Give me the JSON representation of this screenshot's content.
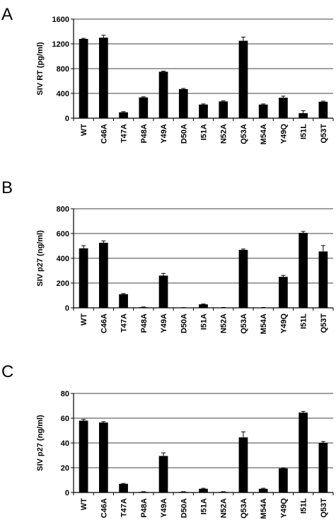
{
  "chart_data": [
    {
      "type": "bar",
      "panel": "A",
      "ylabel": "SIV RT (pg/ml)",
      "ylim": [
        0,
        1600
      ],
      "yticks": [
        0,
        400,
        800,
        1200,
        1600
      ],
      "grid": true,
      "categories": [
        "WT",
        "C46A",
        "T47A",
        "P48A",
        "Y49A",
        "D50A",
        "I51A",
        "N52A",
        "Q53A",
        "M54A",
        "Y49Q",
        "I51L",
        "Q53T"
      ],
      "values": [
        1280,
        1300,
        95,
        335,
        750,
        470,
        220,
        270,
        1250,
        220,
        330,
        80,
        265
      ],
      "errors": [
        10,
        40,
        10,
        10,
        10,
        10,
        10,
        10,
        60,
        10,
        25,
        40,
        10
      ],
      "bar_color": "#000000"
    },
    {
      "type": "bar",
      "panel": "B",
      "ylabel": "SIV p27 (ng/ml)",
      "ylim": [
        0,
        800
      ],
      "yticks": [
        0,
        200,
        400,
        600,
        800
      ],
      "grid": true,
      "categories": [
        "WT",
        "C46A",
        "T47A",
        "P48A",
        "Y49A",
        "D50A",
        "I51A",
        "N52A",
        "Q53A",
        "M54A",
        "Y49Q",
        "I51L",
        "Q53T"
      ],
      "values": [
        480,
        525,
        110,
        5,
        260,
        1,
        28,
        2,
        468,
        2,
        250,
        605,
        455
      ],
      "errors": [
        22,
        15,
        5,
        2,
        18,
        1,
        3,
        1,
        7,
        1,
        12,
        12,
        48
      ],
      "bar_color": "#000000"
    },
    {
      "type": "bar",
      "panel": "C",
      "ylabel": "SIV p27 (ng/ml)",
      "ylim": [
        0,
        80
      ],
      "yticks": [
        0,
        20,
        40,
        60,
        80
      ],
      "grid": true,
      "categories": [
        "WT",
        "C46A",
        "T47A",
        "P48A",
        "Y49A",
        "D50A",
        "I51A",
        "N52A",
        "Q53A",
        "M54A",
        "Y49Q",
        "I51L",
        "Q53T"
      ],
      "values": [
        58,
        56.5,
        7,
        0.5,
        29.5,
        0.5,
        3,
        0.5,
        44.5,
        3,
        19.5,
        64.5,
        40
      ],
      "errors": [
        1,
        0.8,
        0.3,
        0.2,
        2.5,
        0.2,
        0.4,
        0.2,
        4.5,
        0.4,
        0.3,
        1,
        1.2
      ],
      "bar_color": "#000000"
    }
  ]
}
